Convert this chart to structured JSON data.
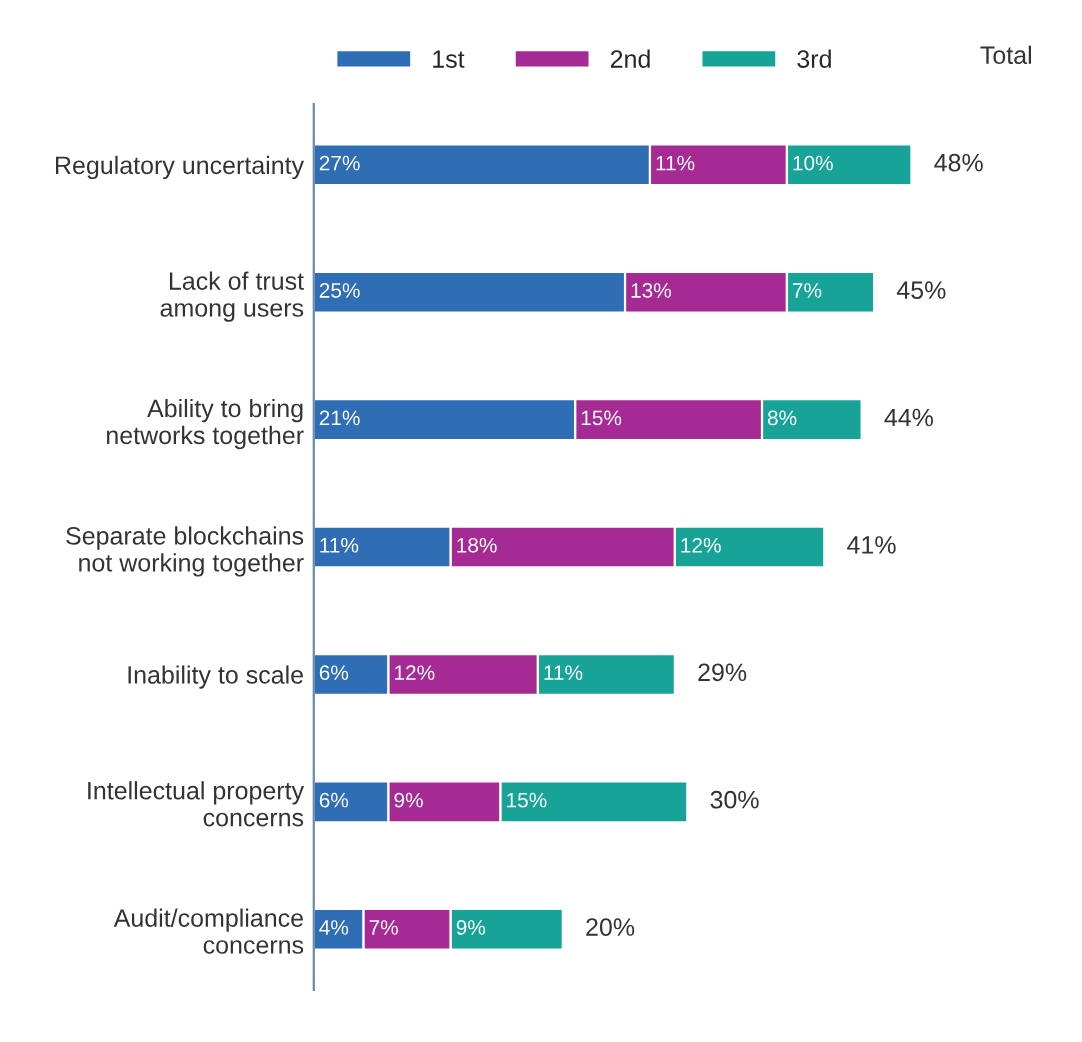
{
  "chart_data": {
    "type": "bar",
    "orientation": "horizontal",
    "stacked": true,
    "categories": [
      "Regulatory uncertainty",
      "Lack of trust\namong users",
      "Ability to bring\nnetworks together",
      "Separate blockchains\nnot working together",
      "Inability to scale",
      "Intellectual property\nconcerns",
      "Audit/compliance\nconcerns"
    ],
    "series": [
      {
        "name": "1st",
        "color": "#2f6db5",
        "values": [
          27,
          25,
          21,
          11,
          6,
          6,
          4
        ],
        "value_labels": [
          "27%",
          "25%",
          "21%",
          "11%",
          "6%",
          "6%",
          "4%"
        ]
      },
      {
        "name": "2nd",
        "color": "#a52a93",
        "values": [
          11,
          13,
          15,
          18,
          12,
          9,
          7
        ],
        "value_labels": [
          "11%",
          "13%",
          "15%",
          "18%",
          "12%",
          "9%",
          "7%"
        ]
      },
      {
        "name": "3rd",
        "color": "#17a398",
        "values": [
          10,
          7,
          8,
          12,
          11,
          15,
          9
        ],
        "value_labels": [
          "10%",
          "7%",
          "8%",
          "12%",
          "11%",
          "15%",
          "9%"
        ]
      }
    ],
    "totals": [
      "48%",
      "45%",
      "44%",
      "41%",
      "29%",
      "30%",
      "20%"
    ],
    "annotations": [
      "Total"
    ],
    "legend": "top"
  }
}
